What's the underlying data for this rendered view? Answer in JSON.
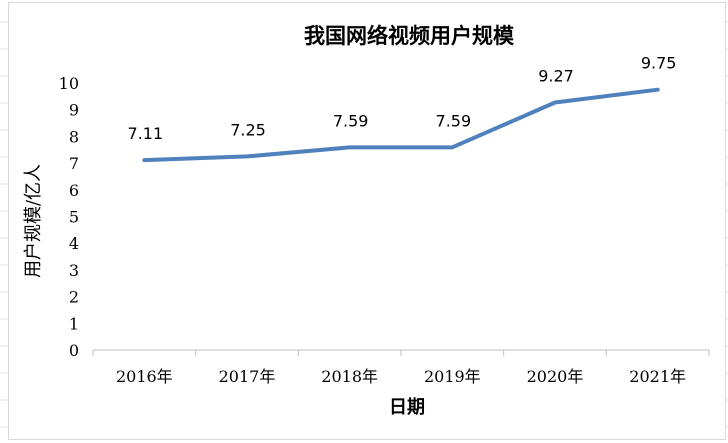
{
  "chart_data": {
    "type": "line",
    "title": "我国网络视频用户规模",
    "xlabel": "日期",
    "ylabel": "用户规模/亿人",
    "categories": [
      "2016年",
      "2017年",
      "2018年",
      "2019年",
      "2020年",
      "2021年"
    ],
    "series": [
      {
        "values": [
          7.11,
          7.25,
          7.59,
          7.59,
          9.27,
          9.75
        ]
      }
    ],
    "data_labels": [
      "7.11",
      "7.25",
      "7.59",
      "7.59",
      "9.27",
      "9.75"
    ],
    "ylim": [
      0,
      10
    ],
    "yticks": [
      "0",
      "1",
      "2",
      "3",
      "4",
      "5",
      "6",
      "7",
      "8",
      "9",
      "10"
    ],
    "grid": false,
    "legend": "none",
    "line_color": "#4f81bd"
  }
}
